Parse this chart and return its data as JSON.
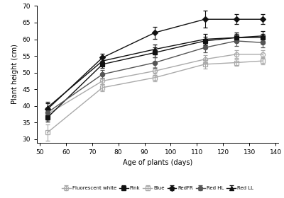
{
  "x": [
    53,
    74,
    94,
    113,
    125,
    135
  ],
  "series": {
    "Fluorescent white": {
      "y": [
        37.5,
        47.5,
        50.5,
        54.0,
        55.5,
        55.5
      ],
      "yerr": [
        1.8,
        1.0,
        1.2,
        1.2,
        1.2,
        1.2
      ],
      "color": "#aaaaaa",
      "marker": "o",
      "fillstyle": "none",
      "linestyle": "-"
    },
    "Pink": {
      "y": [
        36.5,
        52.5,
        56.0,
        59.5,
        60.5,
        60.5
      ],
      "yerr": [
        1.2,
        1.0,
        1.5,
        1.2,
        1.2,
        1.2
      ],
      "color": "#111111",
      "marker": "s",
      "fillstyle": "full",
      "linestyle": "-"
    },
    "Blue": {
      "y": [
        32.0,
        45.5,
        48.5,
        52.5,
        53.0,
        53.5
      ],
      "yerr": [
        2.5,
        1.0,
        1.2,
        1.2,
        1.0,
        1.0
      ],
      "color": "#aaaaaa",
      "marker": "s",
      "fillstyle": "none",
      "linestyle": "-"
    },
    "RedFR": {
      "y": [
        39.0,
        54.5,
        62.0,
        66.0,
        66.0,
        66.0
      ],
      "yerr": [
        1.8,
        1.2,
        1.8,
        2.5,
        1.5,
        1.5
      ],
      "color": "#111111",
      "marker": "D",
      "fillstyle": "full",
      "linestyle": "-"
    },
    "Red HL": {
      "y": [
        38.0,
        49.5,
        53.0,
        57.5,
        59.5,
        59.0
      ],
      "yerr": [
        1.5,
        1.2,
        1.5,
        1.5,
        1.5,
        1.5
      ],
      "color": "#555555",
      "marker": "o",
      "fillstyle": "full",
      "linestyle": "-"
    },
    "Red LL": {
      "y": [
        39.5,
        53.5,
        57.0,
        60.0,
        60.5,
        61.0
      ],
      "yerr": [
        1.8,
        1.2,
        1.5,
        1.5,
        1.5,
        1.5
      ],
      "color": "#111111",
      "marker": "^",
      "fillstyle": "full",
      "linestyle": "-"
    }
  },
  "xlabel": "Age of plants (days)",
  "ylabel": "Plant height (cm)",
  "xlim": [
    49,
    141
  ],
  "ylim": [
    29,
    70
  ],
  "xticks": [
    50,
    60,
    70,
    80,
    90,
    100,
    110,
    120,
    130,
    140
  ],
  "yticks": [
    30,
    35,
    40,
    45,
    50,
    55,
    60,
    65,
    70
  ],
  "legend_order": [
    "Fluorescent white",
    "Pink",
    "Blue",
    "RedFR",
    "Red HL",
    "Red LL"
  ]
}
